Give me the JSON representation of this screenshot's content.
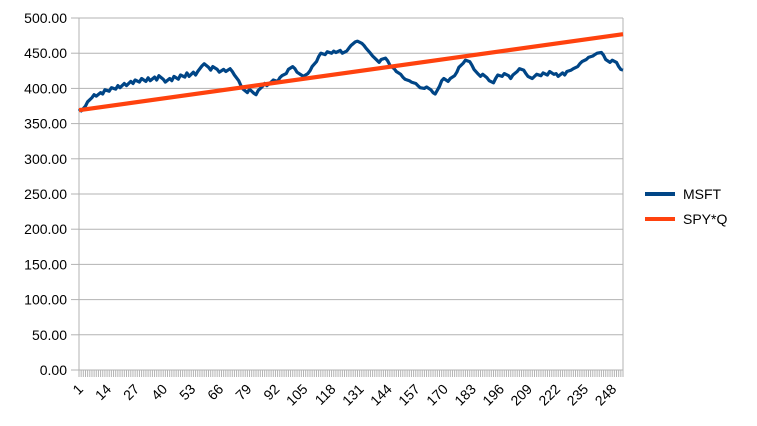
{
  "chart_data": {
    "type": "line",
    "title": "",
    "xlabel": "",
    "ylabel": "",
    "ylim": [
      0,
      500
    ],
    "y_tick_step": 50,
    "y_tick_labels": [
      "0.00",
      "50.00",
      "100.00",
      "150.00",
      "200.00",
      "250.00",
      "300.00",
      "350.00",
      "400.00",
      "450.00",
      "500.00"
    ],
    "x_tick_positions": [
      1,
      14,
      27,
      40,
      53,
      66,
      79,
      92,
      105,
      118,
      131,
      144,
      157,
      170,
      183,
      196,
      209,
      222,
      235,
      248
    ],
    "x_tick_labels": [
      "1",
      "14",
      "27",
      "40",
      "53",
      "66",
      "79",
      "92",
      "105",
      "118",
      "131",
      "144",
      "157",
      "170",
      "183",
      "196",
      "209",
      "222",
      "235",
      "248"
    ],
    "n_points": 253,
    "grid": "horizontal-major",
    "legend_position": "right",
    "colors": {
      "axis": "#b3b3b3",
      "gridline": "#c0c0c0",
      "text": "#000000",
      "background": "#ffffff"
    },
    "series": [
      {
        "name": "MSFT",
        "color": "#004586",
        "points": [
          [
            1,
            371
          ],
          [
            2,
            368
          ],
          [
            4,
            375
          ],
          [
            5,
            381
          ],
          [
            7,
            387
          ],
          [
            8,
            391
          ],
          [
            9,
            389
          ],
          [
            11,
            394
          ],
          [
            12,
            392
          ],
          [
            13,
            398
          ],
          [
            15,
            396
          ],
          [
            16,
            401
          ],
          [
            18,
            399
          ],
          [
            19,
            404
          ],
          [
            20,
            401
          ],
          [
            22,
            407
          ],
          [
            23,
            404
          ],
          [
            25,
            410
          ],
          [
            26,
            407
          ],
          [
            27,
            412
          ],
          [
            29,
            409
          ],
          [
            30,
            414
          ],
          [
            32,
            410
          ],
          [
            33,
            415
          ],
          [
            34,
            411
          ],
          [
            36,
            416
          ],
          [
            37,
            412
          ],
          [
            38,
            418
          ],
          [
            40,
            413
          ],
          [
            41,
            409
          ],
          [
            43,
            414
          ],
          [
            44,
            411
          ],
          [
            45,
            417
          ],
          [
            47,
            413
          ],
          [
            48,
            419
          ],
          [
            50,
            416
          ],
          [
            51,
            422
          ],
          [
            52,
            417
          ],
          [
            54,
            423
          ],
          [
            55,
            419
          ],
          [
            56,
            424
          ],
          [
            58,
            432
          ],
          [
            59,
            435
          ],
          [
            61,
            430
          ],
          [
            62,
            426
          ],
          [
            63,
            431
          ],
          [
            65,
            427
          ],
          [
            66,
            423
          ],
          [
            68,
            427
          ],
          [
            69,
            424
          ],
          [
            71,
            428
          ],
          [
            72,
            424
          ],
          [
            73,
            419
          ],
          [
            75,
            411
          ],
          [
            76,
            404
          ],
          [
            77,
            399
          ],
          [
            79,
            394
          ],
          [
            80,
            399
          ],
          [
            82,
            393
          ],
          [
            83,
            391
          ],
          [
            84,
            397
          ],
          [
            86,
            403
          ],
          [
            87,
            407
          ],
          [
            88,
            404
          ],
          [
            90,
            409
          ],
          [
            91,
            412
          ],
          [
            93,
            410
          ],
          [
            94,
            415
          ],
          [
            95,
            418
          ],
          [
            97,
            421
          ],
          [
            98,
            427
          ],
          [
            100,
            431
          ],
          [
            101,
            428
          ],
          [
            102,
            423
          ],
          [
            104,
            419
          ],
          [
            105,
            417
          ],
          [
            107,
            421
          ],
          [
            108,
            425
          ],
          [
            109,
            431
          ],
          [
            111,
            438
          ],
          [
            112,
            445
          ],
          [
            113,
            450
          ],
          [
            115,
            448
          ],
          [
            116,
            452
          ],
          [
            118,
            450
          ],
          [
            119,
            453
          ],
          [
            120,
            451
          ],
          [
            122,
            454
          ],
          [
            123,
            450
          ],
          [
            125,
            453
          ],
          [
            126,
            457
          ],
          [
            127,
            461
          ],
          [
            129,
            466
          ],
          [
            130,
            467
          ],
          [
            132,
            464
          ],
          [
            133,
            461
          ],
          [
            134,
            457
          ],
          [
            136,
            450
          ],
          [
            137,
            446
          ],
          [
            139,
            440
          ],
          [
            140,
            437
          ],
          [
            141,
            441
          ],
          [
            143,
            443
          ],
          [
            144,
            439
          ],
          [
            145,
            433
          ],
          [
            147,
            428
          ],
          [
            148,
            424
          ],
          [
            150,
            420
          ],
          [
            151,
            416
          ],
          [
            152,
            413
          ],
          [
            154,
            411
          ],
          [
            155,
            409
          ],
          [
            157,
            407
          ],
          [
            158,
            404
          ],
          [
            159,
            401
          ],
          [
            161,
            400
          ],
          [
            162,
            402
          ],
          [
            164,
            398
          ],
          [
            165,
            394
          ],
          [
            166,
            392
          ],
          [
            168,
            403
          ],
          [
            169,
            411
          ],
          [
            170,
            414
          ],
          [
            172,
            410
          ],
          [
            173,
            414
          ],
          [
            175,
            418
          ],
          [
            176,
            423
          ],
          [
            177,
            430
          ],
          [
            179,
            436
          ],
          [
            180,
            440
          ],
          [
            182,
            438
          ],
          [
            183,
            433
          ],
          [
            184,
            427
          ],
          [
            186,
            420
          ],
          [
            187,
            417
          ],
          [
            188,
            420
          ],
          [
            190,
            415
          ],
          [
            191,
            411
          ],
          [
            193,
            408
          ],
          [
            194,
            414
          ],
          [
            195,
            419
          ],
          [
            197,
            417
          ],
          [
            198,
            421
          ],
          [
            200,
            418
          ],
          [
            201,
            414
          ],
          [
            202,
            419
          ],
          [
            204,
            424
          ],
          [
            205,
            428
          ],
          [
            207,
            426
          ],
          [
            208,
            421
          ],
          [
            209,
            417
          ],
          [
            211,
            414
          ],
          [
            212,
            417
          ],
          [
            213,
            420
          ],
          [
            215,
            418
          ],
          [
            216,
            422
          ],
          [
            218,
            419
          ],
          [
            219,
            424
          ],
          [
            221,
            420
          ],
          [
            222,
            421
          ],
          [
            223,
            417
          ],
          [
            225,
            422
          ],
          [
            226,
            419
          ],
          [
            227,
            424
          ],
          [
            229,
            426
          ],
          [
            230,
            428
          ],
          [
            232,
            431
          ],
          [
            233,
            435
          ],
          [
            234,
            438
          ],
          [
            236,
            441
          ],
          [
            237,
            444
          ],
          [
            239,
            446
          ],
          [
            240,
            448
          ],
          [
            241,
            450
          ],
          [
            243,
            451
          ],
          [
            244,
            447
          ],
          [
            245,
            441
          ],
          [
            247,
            437
          ],
          [
            248,
            440
          ],
          [
            250,
            437
          ],
          [
            251,
            431
          ],
          [
            252,
            427
          ],
          [
            253,
            426
          ]
        ]
      },
      {
        "name": "SPY*Q",
        "color": "#ff420e",
        "points": [
          [
            1,
            369
          ],
          [
            253,
            477
          ]
        ]
      }
    ]
  }
}
